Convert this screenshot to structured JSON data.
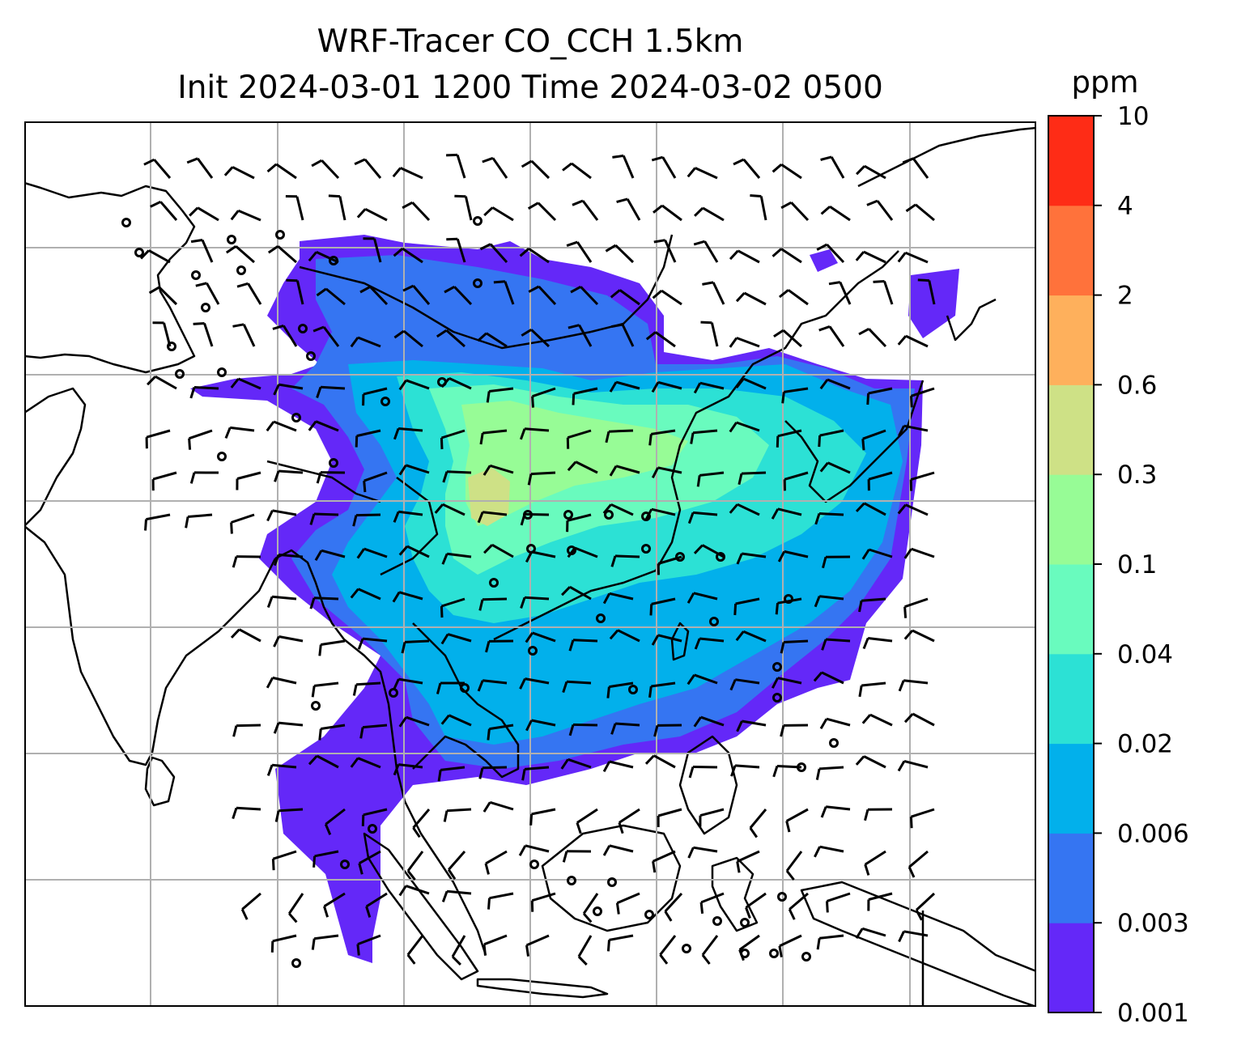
{
  "title": {
    "line1": "WRF-Tracer CO_CCH 1.5km",
    "line2": "Init 2024-03-01 1200 Time 2024-03-02 0500"
  },
  "colorbar": {
    "units": "ppm",
    "levels": [
      "0.001",
      "0.003",
      "0.006",
      "0.02",
      "0.04",
      "0.1",
      "0.3",
      "0.6",
      "2",
      "4",
      "10"
    ],
    "colors": [
      "#6428f8",
      "#3575f2",
      "#02b0eb",
      "#2ce1d5",
      "#69fbbe",
      "#97fc96",
      "#cee186",
      "#feb05c",
      "#ff723b",
      "#fe2c16"
    ]
  },
  "map": {
    "background": "#ffffff",
    "coastline_color": "#000000",
    "gridline_color": "#b0b0b0",
    "calm_marker": "circle",
    "wind_barb_color": "#000000"
  }
}
